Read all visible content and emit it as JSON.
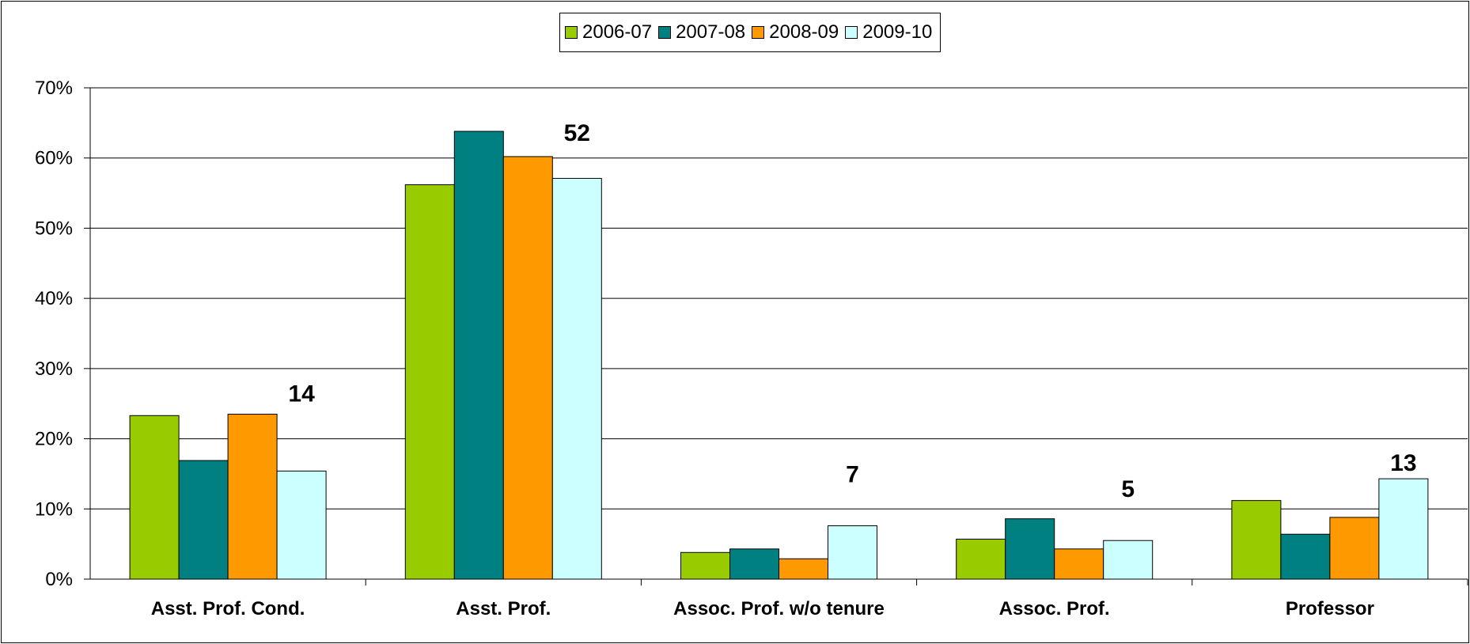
{
  "chart_data": {
    "type": "bar",
    "categories": [
      "Asst. Prof. Cond.",
      "Asst. Prof.",
      "Assoc. Prof. w/o tenure",
      "Assoc. Prof.",
      "Professor"
    ],
    "series": [
      {
        "name": "2006-07",
        "color": "#99cc00",
        "values": [
          23.3,
          56.2,
          3.8,
          5.7,
          11.2
        ]
      },
      {
        "name": "2007-08",
        "color": "#008080",
        "values": [
          16.9,
          63.8,
          4.3,
          8.6,
          6.4
        ]
      },
      {
        "name": "2008-09",
        "color": "#ff9900",
        "values": [
          23.5,
          60.2,
          2.9,
          4.3,
          8.8
        ]
      },
      {
        "name": "2009-10",
        "color": "#ccffff",
        "values": [
          15.4,
          57.1,
          7.6,
          5.5,
          14.3
        ]
      }
    ],
    "annotations": [
      "14",
      "52",
      "7",
      "5",
      "13"
    ],
    "ylim": [
      0,
      70
    ],
    "yticks": [
      0,
      10,
      20,
      30,
      40,
      50,
      60,
      70
    ],
    "ytick_labels": [
      "0%",
      "10%",
      "20%",
      "30%",
      "40%",
      "50%",
      "60%",
      "70%"
    ],
    "grid": true,
    "legend_position": "top-center"
  }
}
